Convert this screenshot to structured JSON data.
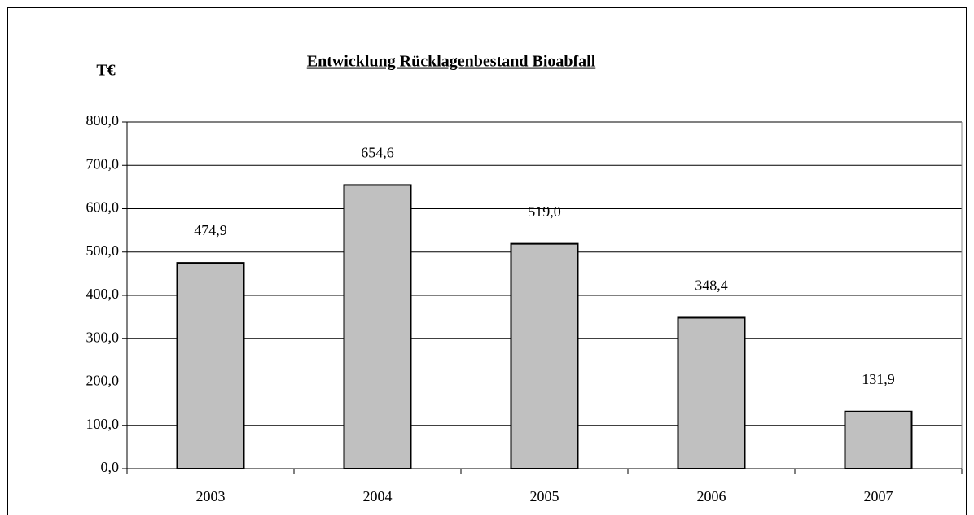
{
  "chart_data": {
    "type": "bar",
    "title": "Entwicklung Rücklagenbestand Bioabfall",
    "y_label": "T€",
    "categories": [
      "2003",
      "2004",
      "2005",
      "2006",
      "2007"
    ],
    "values": [
      474.9,
      654.6,
      519.0,
      348.4,
      131.9
    ],
    "value_labels": [
      "474,9",
      "654,6",
      "519,0",
      "348,4",
      "131,9"
    ],
    "color": "#c0c0c0",
    "ylim": [
      0,
      800
    ],
    "yticks": [
      {
        "value": 0,
        "label": "0,0"
      },
      {
        "value": 100,
        "label": "100,0"
      },
      {
        "value": 200,
        "label": "200,0"
      },
      {
        "value": 300,
        "label": "300,0"
      },
      {
        "value": 400,
        "label": "400,0"
      },
      {
        "value": 500,
        "label": "500,0"
      },
      {
        "value": 600,
        "label": "600,0"
      },
      {
        "value": 700,
        "label": "700,0"
      },
      {
        "value": 800,
        "label": "800,0"
      }
    ],
    "grid": true
  }
}
